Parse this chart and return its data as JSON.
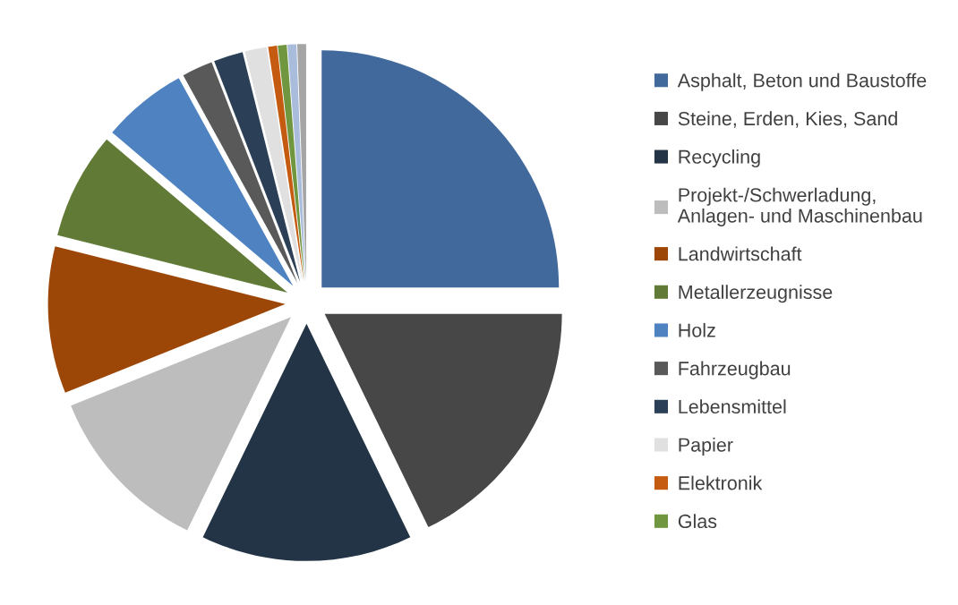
{
  "chart_data": {
    "type": "pie",
    "categories": [
      "Asphalt, Beton und Baustoffe",
      "Steine, Erden, Kies, Sand",
      "Recycling",
      "Projekt-/Schwerladung,\nAnlagen- und Maschinenbau",
      "Landwirtschaft",
      "Metallerzeugnisse",
      "Holz",
      "Fahrzeugbau",
      "Lebensmittel",
      "Papier",
      "Elektronik",
      "Glas",
      null,
      null
    ],
    "values": [
      25,
      17.8,
      14.4,
      11.7,
      10,
      7.3,
      5.8,
      2.1,
      2.0,
      1.5,
      0.6,
      0.6,
      0.6,
      0.6
    ],
    "colors": [
      "#41699c",
      "#474747",
      "#233446",
      "#bdbdbd",
      "#9c4708",
      "#617b37",
      "#4e82c0",
      "#595959",
      "#2b3f56",
      "#e0e0e0",
      "#c55a11",
      "#70963f",
      "#a9bcdc",
      "#a5a5a5"
    ],
    "legend": "right"
  }
}
